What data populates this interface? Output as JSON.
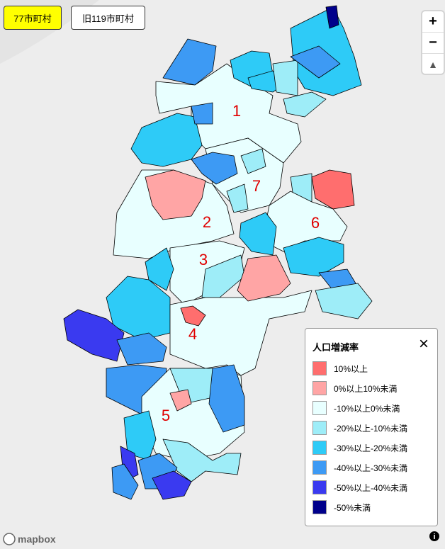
{
  "buttons": [
    {
      "label": "77市町村"
    },
    {
      "label": "旧119市町村"
    }
  ],
  "zoom": {
    "in": "+",
    "out": "−"
  },
  "region_labels": [
    "1",
    "7",
    "2",
    "6",
    "3",
    "4",
    "5"
  ],
  "legend": {
    "title": "人口増減率",
    "close": "×",
    "items": [
      {
        "label": "10%以上",
        "color": "#ff6e6e"
      },
      {
        "label": "0%以上10%未満",
        "color": "#ffa5a5"
      },
      {
        "label": "-10%以上0%未満",
        "color": "#e8ffff"
      },
      {
        "label": "-20%以上-10%未満",
        "color": "#9eedf8"
      },
      {
        "label": "-30%以上-20%未満",
        "color": "#2ecbf7"
      },
      {
        "label": "-40%以上-30%未満",
        "color": "#3d9af4"
      },
      {
        "label": "-50%以上-40%未満",
        "color": "#3a3af0"
      },
      {
        "label": "-50%未満",
        "color": "#00008b"
      }
    ]
  },
  "attribution": {
    "logo": "mapbox",
    "info": "i"
  }
}
